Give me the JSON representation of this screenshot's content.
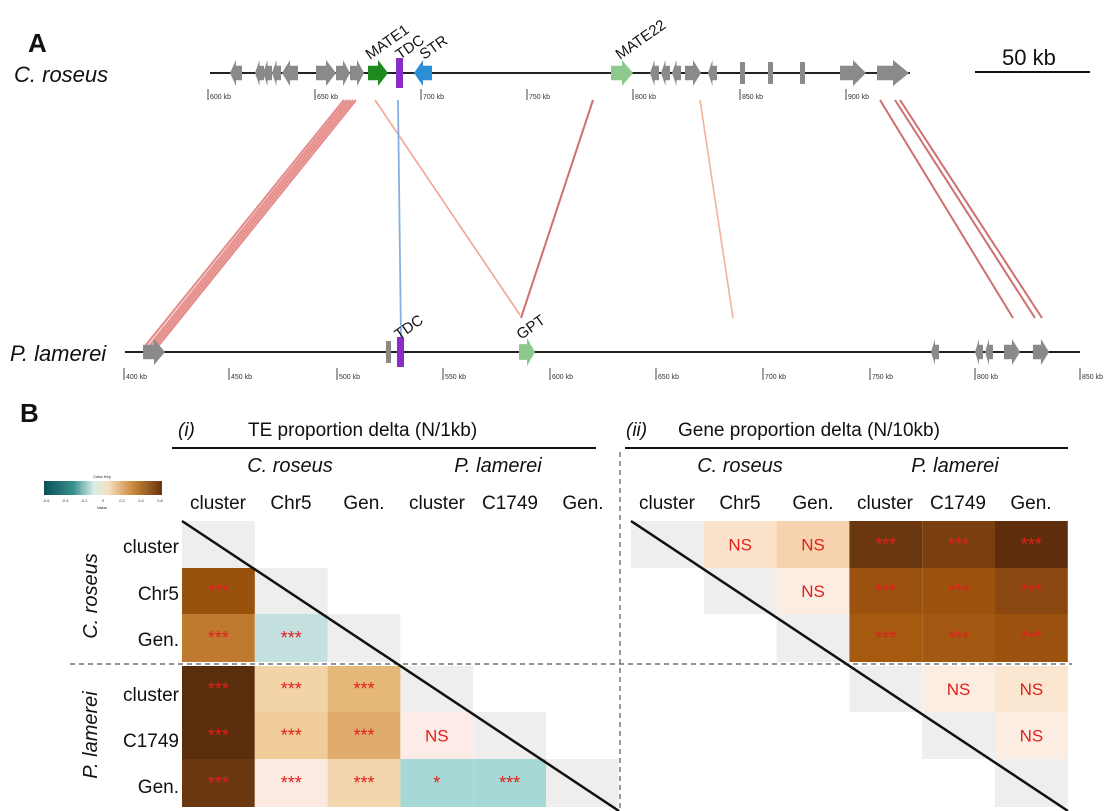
{
  "panelA": {
    "letter": "A",
    "top_species": "C. roseus",
    "bottom_species": "P. lamerei",
    "scale_label": "50 kb",
    "top_genes": [
      {
        "label": "MATE1",
        "color": "#1c8a1c"
      },
      {
        "label": "TDC",
        "color": "#8a2cc7"
      },
      {
        "label": "STR",
        "color": "#2a8fd6"
      },
      {
        "label": "MATE22",
        "color": "#8dc98d"
      }
    ],
    "bottom_genes": [
      {
        "label": "TDC",
        "color": "#8a2cc7"
      },
      {
        "label": "GPT",
        "color": "#8dc98d"
      }
    ],
    "top_ticks": [
      "600 kb",
      "650 kb",
      "700 kb",
      "750 kb",
      "800 kb",
      "850 kb",
      "900 kb"
    ],
    "bottom_ticks": [
      "400 kb",
      "450 kb",
      "500 kb",
      "550 kb",
      "600 kb",
      "650 kb",
      "700 kb",
      "750 kb",
      "800 kb",
      "850 kb"
    ]
  },
  "panelB": {
    "letter": "B",
    "color_key": {
      "title": "Color Key",
      "ticks": [
        "-0.6",
        "-0.4",
        "-0.2",
        "0",
        "0.2",
        "0.4",
        "0.6"
      ],
      "xlabel": "Value"
    },
    "groups": [
      {
        "label": "(i)",
        "title": "TE proportion delta (N/1kb)"
      },
      {
        "label": "(ii)",
        "title": "Gene proportion delta (N/10kb)"
      }
    ],
    "species": [
      "C. roseus",
      "P. lamerei"
    ],
    "columns": [
      "cluster",
      "Chr5",
      "Gen.",
      "cluster",
      "C1749",
      "Gen."
    ],
    "rows": [
      "cluster",
      "Chr5",
      "Gen.",
      "cluster",
      "C1749",
      "Gen."
    ],
    "te_cells": [
      {
        "r": 1,
        "c": 0,
        "text": "***",
        "color": "#99520c"
      },
      {
        "r": 2,
        "c": 0,
        "text": "***",
        "color": "#c07a30"
      },
      {
        "r": 2,
        "c": 1,
        "text": "***",
        "color": "#c4e1e0"
      },
      {
        "r": 3,
        "c": 0,
        "text": "***",
        "color": "#5a2d0c"
      },
      {
        "r": 3,
        "c": 1,
        "text": "***",
        "color": "#f3d4a6"
      },
      {
        "r": 3,
        "c": 2,
        "text": "***",
        "color": "#e6b878"
      },
      {
        "r": 4,
        "c": 0,
        "text": "***",
        "color": "#5a2d0c"
      },
      {
        "r": 4,
        "c": 1,
        "text": "***",
        "color": "#f0cc98"
      },
      {
        "r": 4,
        "c": 2,
        "text": "***",
        "color": "#dfac6c"
      },
      {
        "r": 4,
        "c": 3,
        "text": "NS",
        "color": "#fcebe6"
      },
      {
        "r": 5,
        "c": 0,
        "text": "***",
        "color": "#6a370f"
      },
      {
        "r": 5,
        "c": 1,
        "text": "***",
        "color": "#fbe9e2"
      },
      {
        "r": 5,
        "c": 2,
        "text": "***",
        "color": "#f3d6ad"
      },
      {
        "r": 5,
        "c": 3,
        "text": "*",
        "color": "#a6d8d6"
      },
      {
        "r": 5,
        "c": 4,
        "text": "***",
        "color": "#a6d8d6"
      }
    ],
    "gene_cells": [
      {
        "r": 0,
        "c": 1,
        "text": "NS",
        "color": "#fbe3cb"
      },
      {
        "r": 0,
        "c": 2,
        "text": "NS",
        "color": "#f6d3ae"
      },
      {
        "r": 0,
        "c": 3,
        "text": "***",
        "color": "#6a370f"
      },
      {
        "r": 0,
        "c": 4,
        "text": "***",
        "color": "#7a3f0f"
      },
      {
        "r": 0,
        "c": 5,
        "text": "***",
        "color": "#5e2e0c"
      },
      {
        "r": 1,
        "c": 2,
        "text": "NS",
        "color": "#fcede3"
      },
      {
        "r": 1,
        "c": 3,
        "text": "***",
        "color": "#9a520e"
      },
      {
        "r": 1,
        "c": 4,
        "text": "***",
        "color": "#9c530e"
      },
      {
        "r": 1,
        "c": 5,
        "text": "***",
        "color": "#8a4810"
      },
      {
        "r": 2,
        "c": 3,
        "text": "***",
        "color": "#a65a10"
      },
      {
        "r": 2,
        "c": 4,
        "text": "***",
        "color": "#a25810"
      },
      {
        "r": 2,
        "c": 5,
        "text": "***",
        "color": "#9a520e"
      },
      {
        "r": 3,
        "c": 4,
        "text": "NS",
        "color": "#fcede3"
      },
      {
        "r": 3,
        "c": 5,
        "text": "NS",
        "color": "#fbe6d2"
      },
      {
        "r": 4,
        "c": 5,
        "text": "NS",
        "color": "#fcede3"
      }
    ],
    "diag_color": "#eeeeee",
    "sig_color": "#e0201c"
  }
}
